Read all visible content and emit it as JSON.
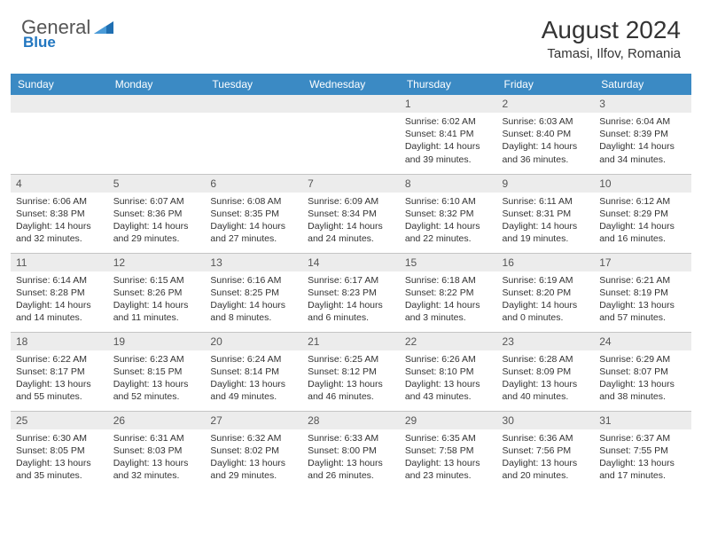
{
  "logo": {
    "text1": "General",
    "text2": "Blue"
  },
  "title": "August 2024",
  "location": "Tamasi, Ilfov, Romania",
  "colors": {
    "header_bg": "#3b8ac4",
    "header_text": "#ffffff",
    "daynum_bg": "#ececec",
    "daynum_text": "#555555",
    "body_text": "#333333",
    "logo_gray": "#555555",
    "logo_blue": "#2176c0",
    "border": "#c5c5c5"
  },
  "weekdays": [
    "Sunday",
    "Monday",
    "Tuesday",
    "Wednesday",
    "Thursday",
    "Friday",
    "Saturday"
  ],
  "weeks": [
    [
      null,
      null,
      null,
      null,
      {
        "n": "1",
        "sr": "6:02 AM",
        "ss": "8:41 PM",
        "dh": "14",
        "dm": "39"
      },
      {
        "n": "2",
        "sr": "6:03 AM",
        "ss": "8:40 PM",
        "dh": "14",
        "dm": "36"
      },
      {
        "n": "3",
        "sr": "6:04 AM",
        "ss": "8:39 PM",
        "dh": "14",
        "dm": "34"
      }
    ],
    [
      {
        "n": "4",
        "sr": "6:06 AM",
        "ss": "8:38 PM",
        "dh": "14",
        "dm": "32"
      },
      {
        "n": "5",
        "sr": "6:07 AM",
        "ss": "8:36 PM",
        "dh": "14",
        "dm": "29"
      },
      {
        "n": "6",
        "sr": "6:08 AM",
        "ss": "8:35 PM",
        "dh": "14",
        "dm": "27"
      },
      {
        "n": "7",
        "sr": "6:09 AM",
        "ss": "8:34 PM",
        "dh": "14",
        "dm": "24"
      },
      {
        "n": "8",
        "sr": "6:10 AM",
        "ss": "8:32 PM",
        "dh": "14",
        "dm": "22"
      },
      {
        "n": "9",
        "sr": "6:11 AM",
        "ss": "8:31 PM",
        "dh": "14",
        "dm": "19"
      },
      {
        "n": "10",
        "sr": "6:12 AM",
        "ss": "8:29 PM",
        "dh": "14",
        "dm": "16"
      }
    ],
    [
      {
        "n": "11",
        "sr": "6:14 AM",
        "ss": "8:28 PM",
        "dh": "14",
        "dm": "14"
      },
      {
        "n": "12",
        "sr": "6:15 AM",
        "ss": "8:26 PM",
        "dh": "14",
        "dm": "11"
      },
      {
        "n": "13",
        "sr": "6:16 AM",
        "ss": "8:25 PM",
        "dh": "14",
        "dm": "8"
      },
      {
        "n": "14",
        "sr": "6:17 AM",
        "ss": "8:23 PM",
        "dh": "14",
        "dm": "6"
      },
      {
        "n": "15",
        "sr": "6:18 AM",
        "ss": "8:22 PM",
        "dh": "14",
        "dm": "3"
      },
      {
        "n": "16",
        "sr": "6:19 AM",
        "ss": "8:20 PM",
        "dh": "14",
        "dm": "0"
      },
      {
        "n": "17",
        "sr": "6:21 AM",
        "ss": "8:19 PM",
        "dh": "13",
        "dm": "57"
      }
    ],
    [
      {
        "n": "18",
        "sr": "6:22 AM",
        "ss": "8:17 PM",
        "dh": "13",
        "dm": "55"
      },
      {
        "n": "19",
        "sr": "6:23 AM",
        "ss": "8:15 PM",
        "dh": "13",
        "dm": "52"
      },
      {
        "n": "20",
        "sr": "6:24 AM",
        "ss": "8:14 PM",
        "dh": "13",
        "dm": "49"
      },
      {
        "n": "21",
        "sr": "6:25 AM",
        "ss": "8:12 PM",
        "dh": "13",
        "dm": "46"
      },
      {
        "n": "22",
        "sr": "6:26 AM",
        "ss": "8:10 PM",
        "dh": "13",
        "dm": "43"
      },
      {
        "n": "23",
        "sr": "6:28 AM",
        "ss": "8:09 PM",
        "dh": "13",
        "dm": "40"
      },
      {
        "n": "24",
        "sr": "6:29 AM",
        "ss": "8:07 PM",
        "dh": "13",
        "dm": "38"
      }
    ],
    [
      {
        "n": "25",
        "sr": "6:30 AM",
        "ss": "8:05 PM",
        "dh": "13",
        "dm": "35"
      },
      {
        "n": "26",
        "sr": "6:31 AM",
        "ss": "8:03 PM",
        "dh": "13",
        "dm": "32"
      },
      {
        "n": "27",
        "sr": "6:32 AM",
        "ss": "8:02 PM",
        "dh": "13",
        "dm": "29"
      },
      {
        "n": "28",
        "sr": "6:33 AM",
        "ss": "8:00 PM",
        "dh": "13",
        "dm": "26"
      },
      {
        "n": "29",
        "sr": "6:35 AM",
        "ss": "7:58 PM",
        "dh": "13",
        "dm": "23"
      },
      {
        "n": "30",
        "sr": "6:36 AM",
        "ss": "7:56 PM",
        "dh": "13",
        "dm": "20"
      },
      {
        "n": "31",
        "sr": "6:37 AM",
        "ss": "7:55 PM",
        "dh": "13",
        "dm": "17"
      }
    ]
  ],
  "labels": {
    "sunrise": "Sunrise:",
    "sunset": "Sunset:",
    "daylight": "Daylight:",
    "hours": "hours",
    "and": "and",
    "minutes": "minutes."
  }
}
